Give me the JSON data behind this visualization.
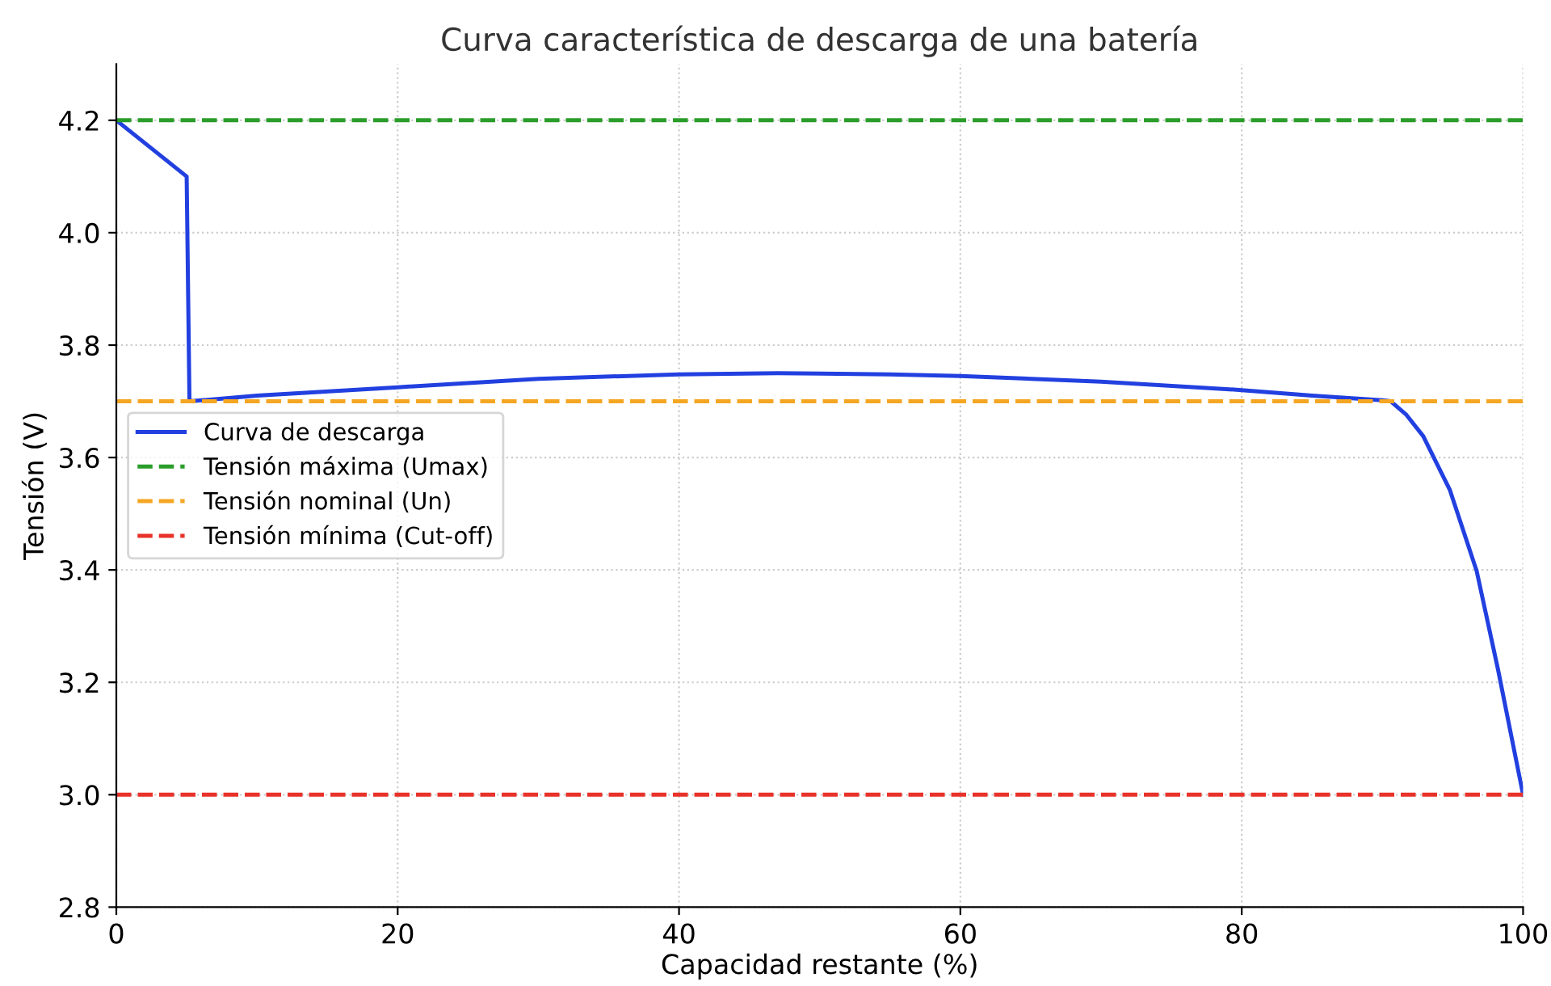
{
  "chart_data": {
    "type": "line",
    "title": "Curva característica de descarga de una batería",
    "xlabel": "Capacidad restante (%)",
    "ylabel": "Tensión (V)",
    "xlim": [
      0,
      100
    ],
    "ylim": [
      2.8,
      4.3
    ],
    "xticks": [
      0,
      20,
      40,
      60,
      80,
      100
    ],
    "yticks": [
      2.8,
      {
        "value": 3.0,
        "label": "3.0"
      },
      3.2,
      3.4,
      3.6,
      3.8,
      {
        "value": 4.0,
        "label": "4.0"
      },
      4.2
    ],
    "grid": true,
    "legend": "left",
    "series": [
      {
        "name": "Curva de descarga",
        "color": "#2240e0",
        "line_style": "solid",
        "x": [
          0,
          5,
          5.2,
          10,
          20,
          30,
          40,
          47,
          55,
          60,
          70,
          80,
          85,
          90,
          90.6,
          91.7,
          92.9,
          94.8,
          96.7,
          98.2,
          100
        ],
        "values": [
          4.2,
          4.1,
          3.7,
          3.71,
          3.725,
          3.74,
          3.748,
          3.75,
          3.748,
          3.745,
          3.735,
          3.72,
          3.71,
          3.702,
          3.7,
          3.676,
          3.638,
          3.542,
          3.398,
          3.225,
          3.0
        ]
      },
      {
        "name": "Tensión máxima (Umax)",
        "color": "#2a9d2a",
        "line_style": "dashed",
        "x": [
          0,
          100
        ],
        "values": [
          4.2,
          4.2
        ]
      },
      {
        "name": "Tensión nominal (Un)",
        "color": "#f5a623",
        "line_style": "dashed",
        "x": [
          0,
          100
        ],
        "values": [
          3.7,
          3.7
        ]
      },
      {
        "name": "Tensión mínima (Cut-off)",
        "color": "#e8322a",
        "line_style": "dashed",
        "x": [
          0,
          100
        ],
        "values": [
          3.0,
          3.0
        ]
      }
    ]
  }
}
